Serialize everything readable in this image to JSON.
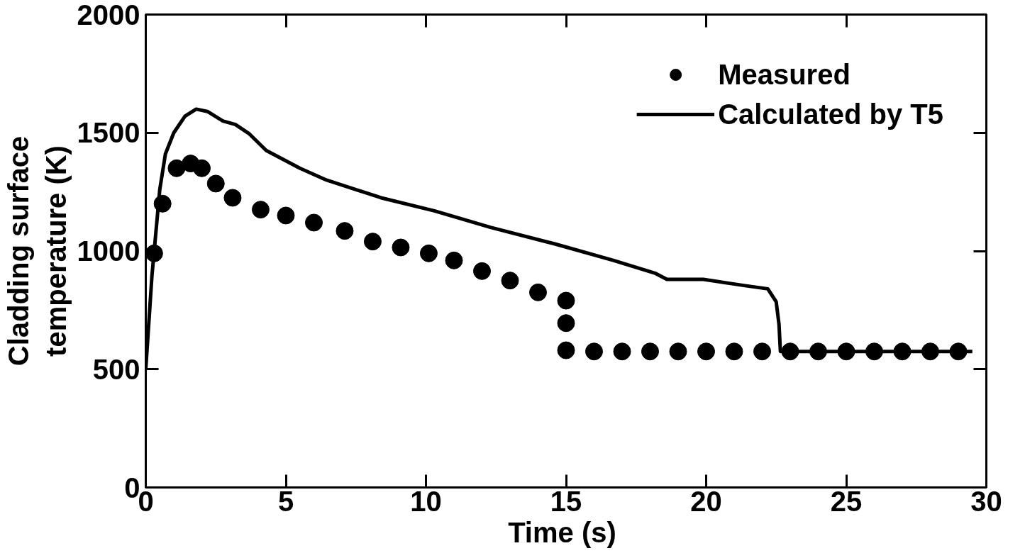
{
  "chart_data": {
    "type": "line",
    "xlabel": "Time  (s)",
    "ylabel": "Cladding surface\ntemperature (K)",
    "xlim": [
      0,
      30
    ],
    "ylim": [
      0,
      2000
    ],
    "xticks": [
      0,
      5,
      10,
      15,
      20,
      25,
      30
    ],
    "yticks": [
      0,
      500,
      1000,
      1500,
      2000
    ],
    "grid": false,
    "legend": "top right",
    "series": [
      {
        "name": "Measured",
        "type": "scatter",
        "marker": "circle",
        "color": "#000000",
        "x": [
          0.3,
          0.6,
          1.1,
          1.6,
          2.0,
          2.5,
          3.1,
          4.1,
          5.0,
          6.0,
          7.1,
          8.1,
          9.1,
          10.1,
          11.0,
          12.0,
          13.0,
          14.0,
          15.0,
          15.0,
          15.0,
          16.0,
          17.0,
          18.0,
          19.0,
          20.0,
          21.0,
          22.0,
          23.0,
          24.0,
          25.0,
          26.0,
          27.0,
          28.0,
          29.0
        ],
        "values": [
          990,
          1200,
          1350,
          1370,
          1350,
          1285,
          1225,
          1175,
          1150,
          1120,
          1085,
          1040,
          1015,
          990,
          960,
          915,
          875,
          825,
          790,
          695,
          580,
          575,
          575,
          575,
          575,
          575,
          575,
          575,
          575,
          575,
          575,
          575,
          575,
          575,
          575
        ]
      },
      {
        "name": "Calculated by T5",
        "line_style": "solid",
        "color": "#000000",
        "x": [
          0.0,
          0.22,
          0.5,
          0.7,
          1.0,
          1.4,
          1.8,
          2.2,
          2.75,
          3.2,
          3.7,
          4.3,
          5.5,
          6.45,
          8.4,
          10.3,
          12.3,
          14.6,
          16.7,
          18.2,
          18.6,
          19.9,
          21.3,
          22.2,
          22.5,
          22.6,
          22.65,
          29.5
        ],
        "values": [
          500,
          895,
          1260,
          1410,
          1500,
          1570,
          1600,
          1590,
          1550,
          1535,
          1495,
          1425,
          1350,
          1300,
          1225,
          1170,
          1100,
          1030,
          960,
          905,
          880,
          880,
          855,
          840,
          785,
          690,
          575,
          575
        ]
      }
    ]
  }
}
